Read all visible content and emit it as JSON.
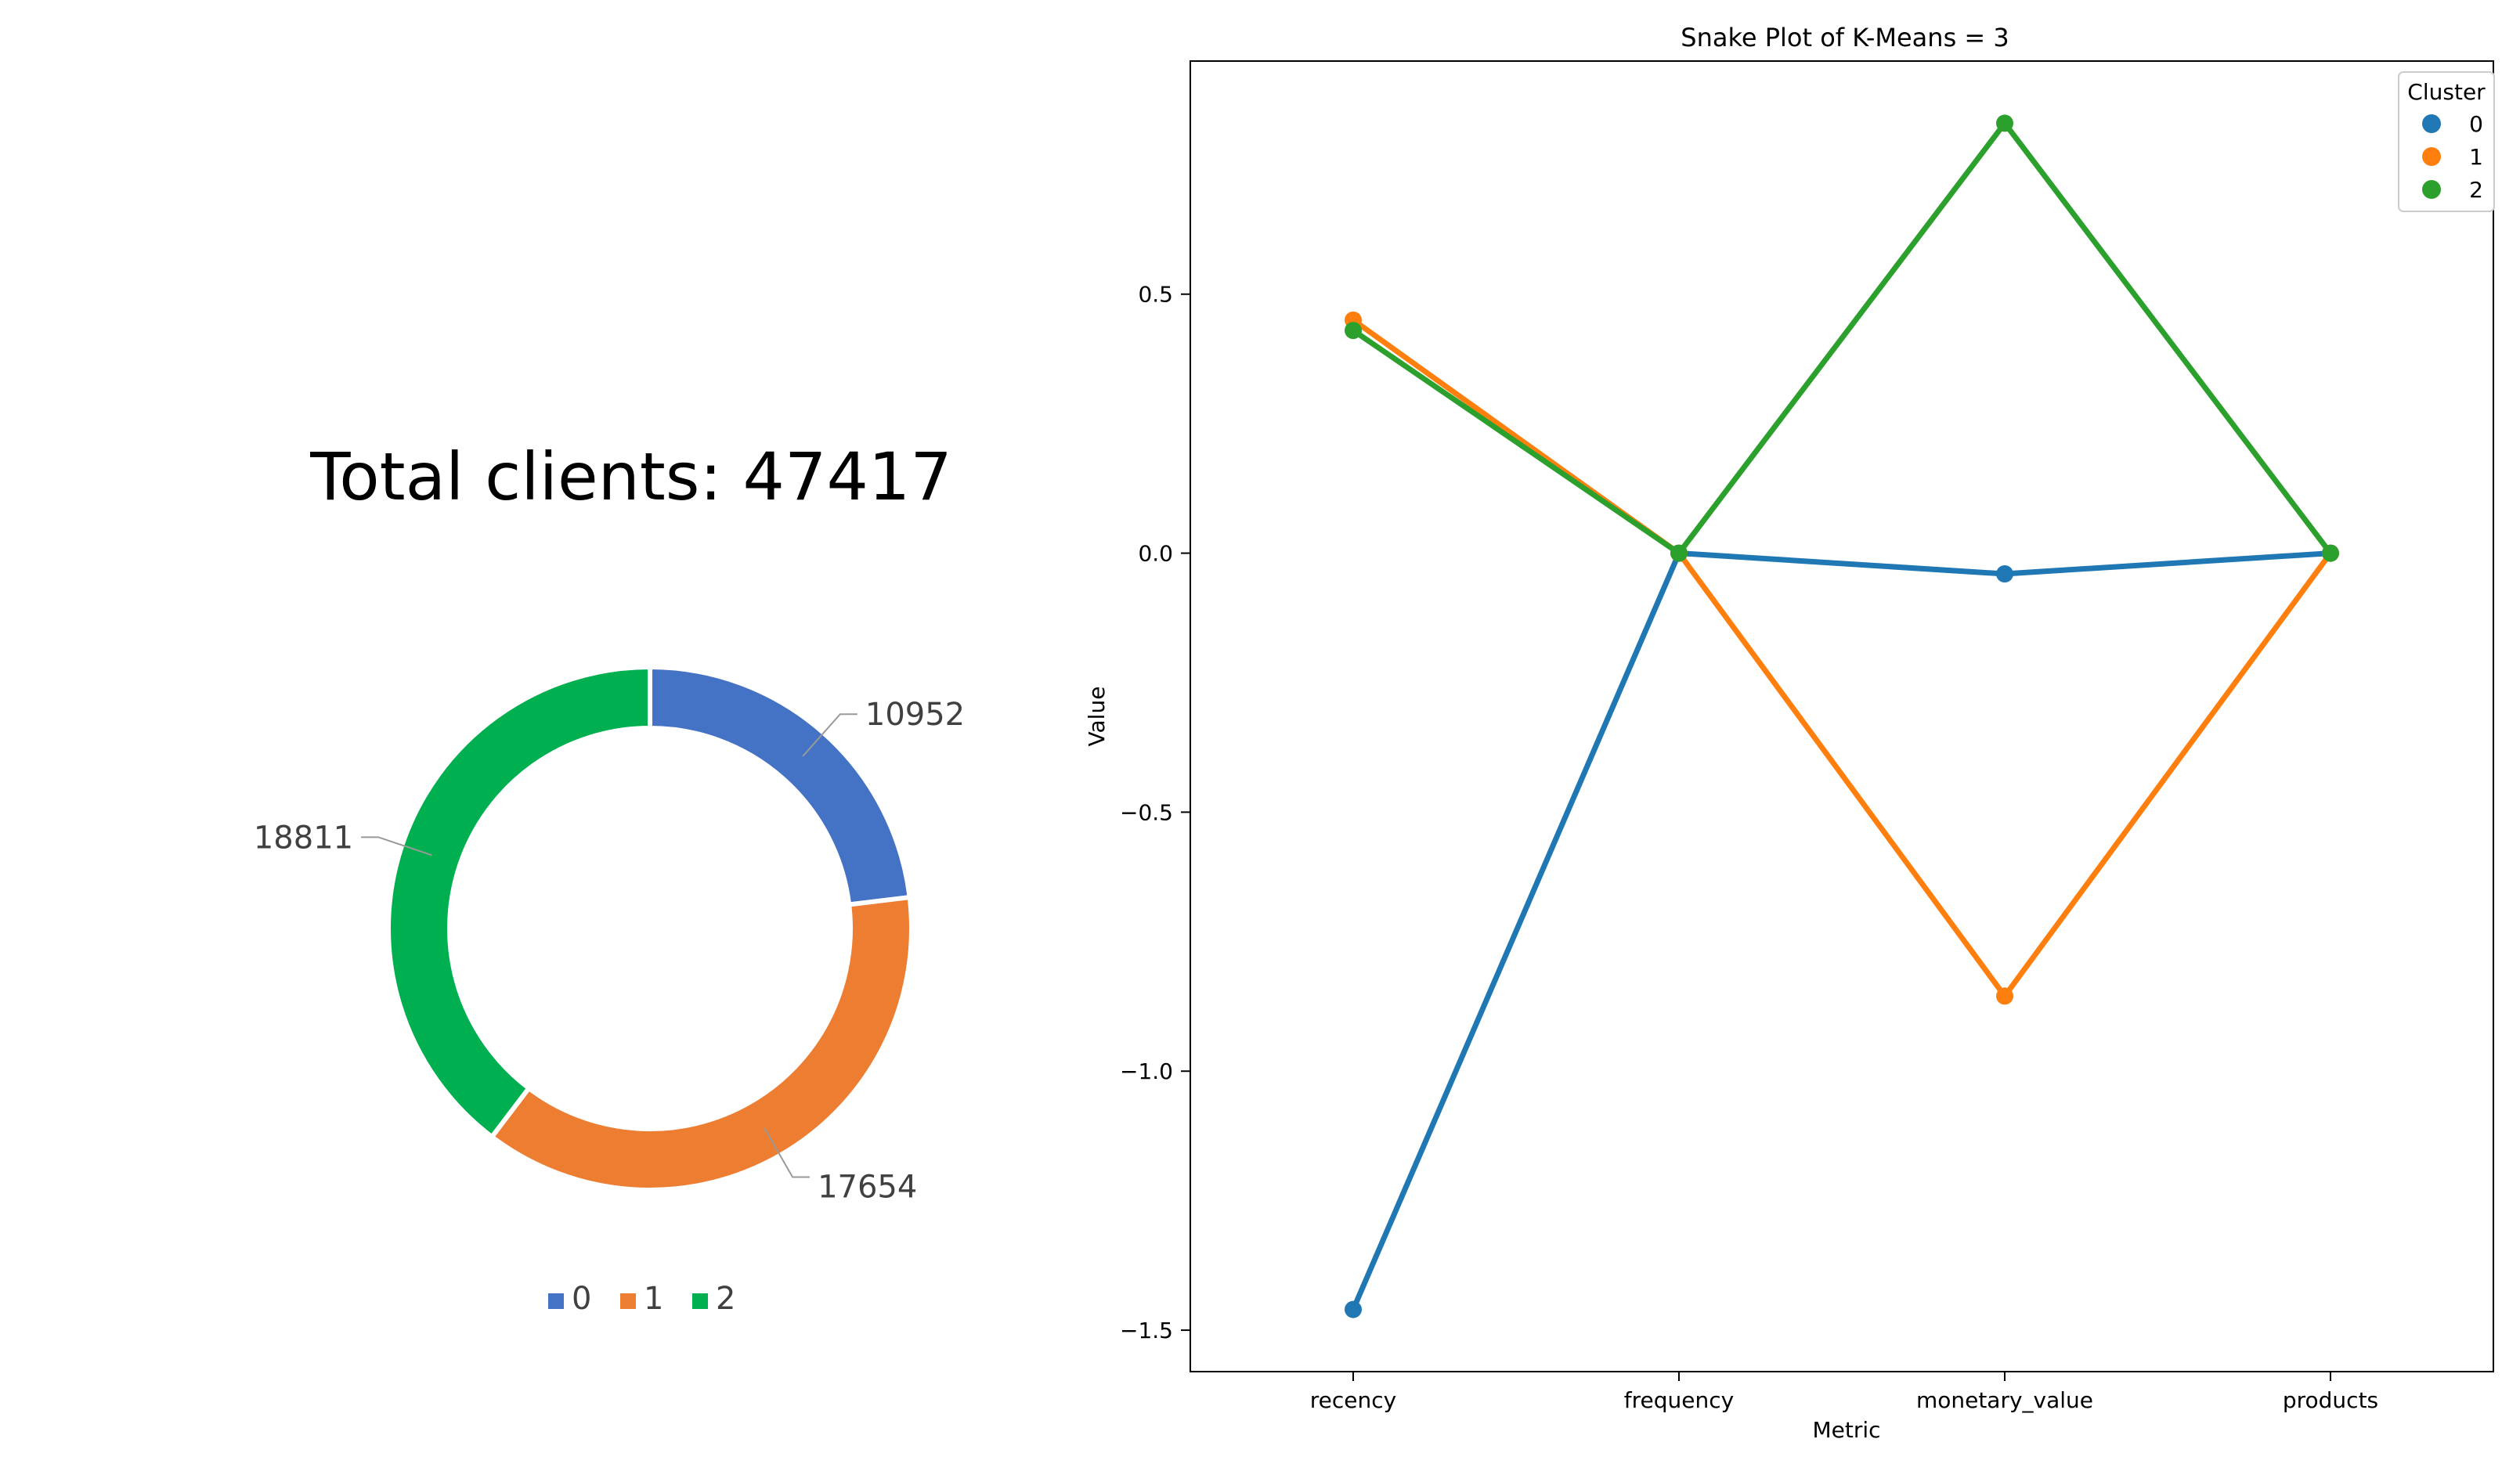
{
  "chart_data": [
    {
      "type": "pie",
      "title": "Total clients: 47417",
      "hole": true,
      "categories": [
        "0",
        "1",
        "2"
      ],
      "values": [
        10952,
        17654,
        18811
      ],
      "colors": [
        "#4472c4",
        "#ed7d31",
        "#00b050"
      ],
      "legend": {
        "position": "bottom",
        "entries": [
          "0",
          "1",
          "2"
        ]
      }
    },
    {
      "type": "line",
      "title": "Snake Plot of K-Means = 3",
      "xlabel": "Metric",
      "ylabel": "Value",
      "categories": [
        "recency",
        "frequency",
        "monetary_value",
        "products"
      ],
      "ylim": [
        -1.58,
        0.95
      ],
      "yticks": [
        0.5,
        0.0,
        -0.5,
        -1.0,
        -1.5
      ],
      "ytick_labels": [
        "0.5",
        "0.0",
        "−0.5",
        "−1.0",
        "−1.5"
      ],
      "legend": {
        "title": "Cluster",
        "position": "top-right"
      },
      "series": [
        {
          "name": "0",
          "color": "#1f77b4",
          "values": [
            -1.46,
            0.0,
            -0.04,
            0.0
          ]
        },
        {
          "name": "1",
          "color": "#ff7f0e",
          "values": [
            0.45,
            0.0,
            -0.855,
            0.0
          ]
        },
        {
          "name": "2",
          "color": "#2ca02c",
          "values": [
            0.43,
            0.0,
            0.83,
            0.0
          ]
        }
      ]
    }
  ]
}
